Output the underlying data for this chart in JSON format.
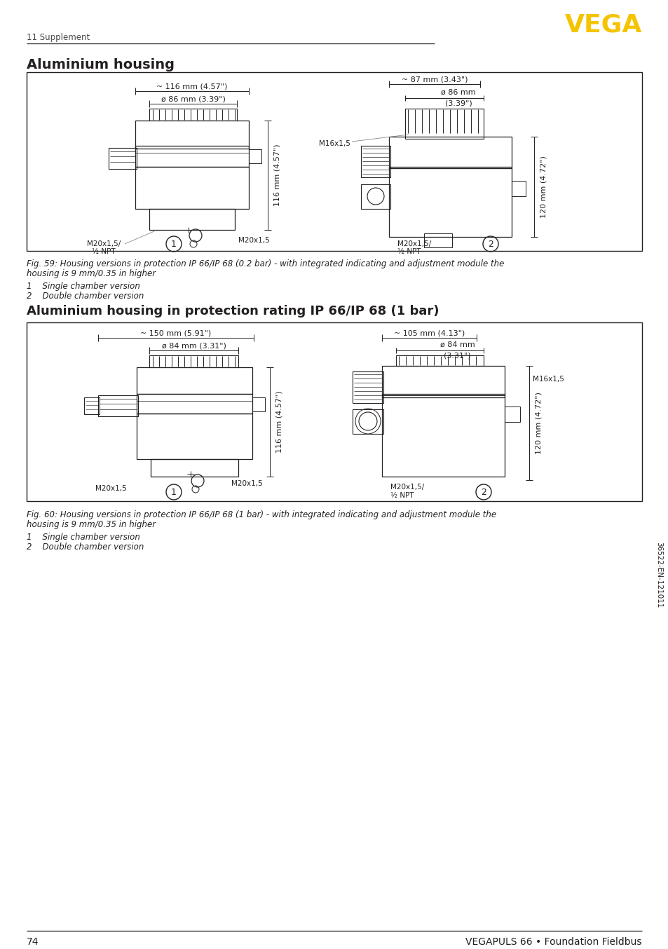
{
  "page_bg": "#ffffff",
  "header_section_label": "11 Supplement",
  "vega_logo_color": "#F5C400",
  "vega_logo_text": "VEGA",
  "section1_title": "Aluminium housing",
  "fig1_caption_line1": "Fig. 59: Housing versions in protection IP 66/IP 68 (0.2 bar) - with integrated indicating and adjustment module the",
  "fig1_caption_line2": "housing is 9 mm/0.35 in higher",
  "fig1_item1": "1    Single chamber version",
  "fig1_item2": "2    Double chamber version",
  "section2_title": "Aluminium housing in protection rating IP 66/IP 68 (1 bar)",
  "fig2_caption_line1": "Fig. 60: Housing versions in protection IP 66/IP 68 (1 bar) - with integrated indicating and adjustment module the",
  "fig2_caption_line2": "housing is 9 mm/0.35 in higher",
  "fig2_item1": "1    Single chamber version",
  "fig2_item2": "2    Double chamber version",
  "footer_page": "74",
  "footer_right": "VEGAPULS 66 • Foundation Fieldbus",
  "sidebar_text": "36522-EN-121011",
  "text_color": "#231f20",
  "gray_text": "#555555",
  "fig1_left_width_label": "~ 116 mm (4.57\")",
  "fig1_left_diam_label": "ø 86 mm (3.39\")",
  "fig1_left_height_label": "116 mm (4.57\")",
  "fig1_left_bl": "M20x1,5/",
  "fig1_left_bl2": "½ NPT",
  "fig1_left_br": "M20x1,5",
  "fig1_right_width_label": "~ 87 mm (3.43\")",
  "fig1_right_diam_label": "ø 86 mm",
  "fig1_right_diam_label2": "(3.39\")",
  "fig1_right_height_label": "120 mm (4.72\")",
  "fig1_right_tl": "M16x1,5",
  "fig1_right_bot1": "M20x1,5/",
  "fig1_right_bot2": "½ NPT",
  "fig2_left_width_label": "~ 150 mm (5.91\")",
  "fig2_left_diam_label": "ø 84 mm (3.31\")",
  "fig2_left_height_label": "116 mm (4.57\")",
  "fig2_left_bl": "M20x1,5",
  "fig2_left_br": "M20x1,5",
  "fig2_right_width_label": "~ 105 mm (4.13\")",
  "fig2_right_diam_label": "ø 84 mm",
  "fig2_right_diam_label2": "(3.31\")",
  "fig2_right_height_label": "120 mm (4.72\")",
  "fig2_right_tl": "M16x1,5",
  "fig2_right_bot1": "M20x1,5/",
  "fig2_right_bot2": "½ NPT"
}
